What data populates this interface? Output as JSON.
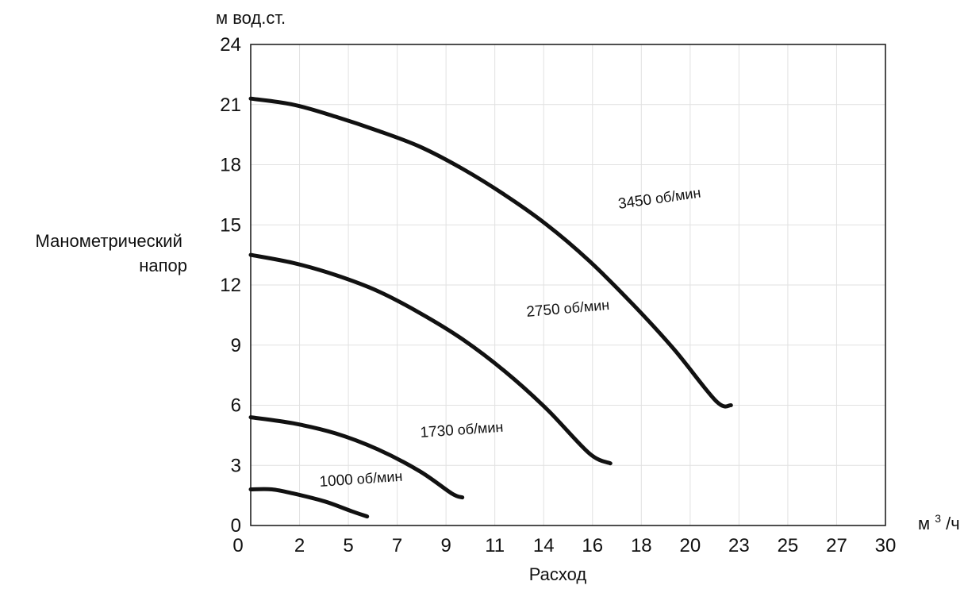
{
  "chart_data": {
    "type": "line",
    "ylabel": "Манометрический напор",
    "ylabel_lines": [
      "Манометрический",
      "напор"
    ],
    "y_unit": "м вод.ст.",
    "xlabel": "Расход",
    "x_unit_base": "м",
    "x_unit_sup": "3",
    "x_unit_tail": "/ч",
    "xlim": [
      0,
      30
    ],
    "ylim": [
      0,
      24
    ],
    "x_tick_labels": [
      "0",
      "2",
      "5",
      "7",
      "9",
      "11",
      "14",
      "16",
      "18",
      "20",
      "23",
      "25",
      "27",
      "30"
    ],
    "y_ticks": [
      0,
      3,
      6,
      9,
      12,
      15,
      18,
      21,
      24
    ],
    "grid": true,
    "series": [
      {
        "name": "3450 об/мин",
        "speed": "3450",
        "unit": "об/мин",
        "points": [
          [
            0,
            21.3
          ],
          [
            2,
            21.0
          ],
          [
            4,
            20.4
          ],
          [
            6,
            19.7
          ],
          [
            8,
            18.9
          ],
          [
            10,
            17.8
          ],
          [
            12,
            16.5
          ],
          [
            14,
            15.0
          ],
          [
            16,
            13.2
          ],
          [
            18,
            11.1
          ],
          [
            20,
            8.8
          ],
          [
            22,
            6.2
          ],
          [
            22.7,
            6.0
          ]
        ]
      },
      {
        "name": "2750 об/мин",
        "speed": "2750",
        "unit": "об/мин",
        "points": [
          [
            0,
            13.5
          ],
          [
            2,
            13.1
          ],
          [
            4,
            12.5
          ],
          [
            6,
            11.7
          ],
          [
            8,
            10.6
          ],
          [
            10,
            9.3
          ],
          [
            12,
            7.7
          ],
          [
            14,
            5.8
          ],
          [
            16,
            3.6
          ],
          [
            17,
            3.1
          ]
        ]
      },
      {
        "name": "1730 об/мин",
        "speed": "1730",
        "unit": "об/мин",
        "points": [
          [
            0,
            5.4
          ],
          [
            2,
            5.1
          ],
          [
            4,
            4.6
          ],
          [
            6,
            3.8
          ],
          [
            8,
            2.7
          ],
          [
            9.5,
            1.6
          ],
          [
            10,
            1.4
          ]
        ]
      },
      {
        "name": "1000 об/мин",
        "speed": "1000",
        "unit": "об/мин",
        "points": [
          [
            0,
            1.8
          ],
          [
            1,
            1.8
          ],
          [
            2,
            1.6
          ],
          [
            3.5,
            1.2
          ],
          [
            4.8,
            0.7
          ],
          [
            5.5,
            0.45
          ]
        ]
      }
    ]
  }
}
